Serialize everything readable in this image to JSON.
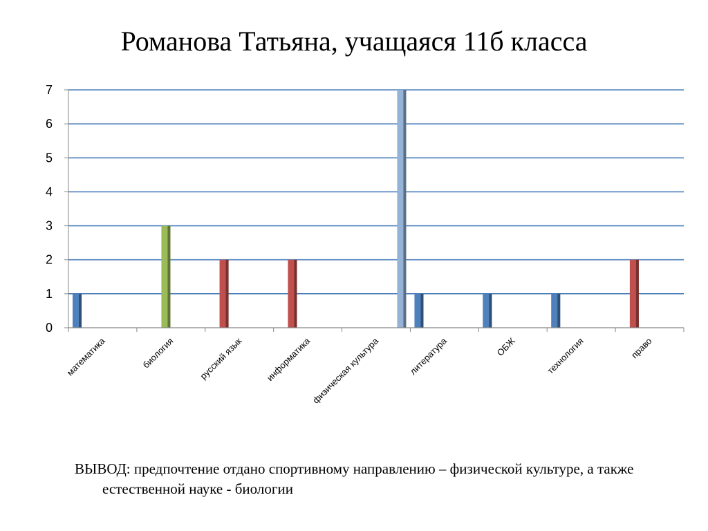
{
  "slide": {
    "title": "Романова Татьяна, учащаяся 11б класса",
    "conclusion": "ВЫВОД: предпочтение отдано спортивному направлению – физической культуре, а также естественной науке - биологии"
  },
  "chart_data": {
    "type": "bar",
    "title": "",
    "xlabel": "",
    "ylabel": "",
    "ylim": [
      0,
      7
    ],
    "yticks": [
      0,
      1,
      2,
      3,
      4,
      5,
      6,
      7
    ],
    "grid": true,
    "legend": "none",
    "categories": [
      "математика",
      "биология",
      "русский язык",
      "информатика",
      "физическая культура",
      "литература",
      "ОБЖ",
      "технология",
      "право"
    ],
    "series": [
      {
        "color": "#4F81BD",
        "values": [
          1,
          null,
          null,
          null,
          null,
          1,
          1,
          1,
          null
        ]
      },
      {
        "color": "#C0504D",
        "values": [
          null,
          null,
          2,
          2,
          null,
          null,
          null,
          null,
          2
        ]
      },
      {
        "color": "#9BBB59",
        "values": [
          null,
          3,
          null,
          null,
          null,
          null,
          null,
          null,
          null
        ]
      },
      {
        "color": "#8064A2",
        "values": [
          null,
          null,
          null,
          null,
          null,
          null,
          null,
          null,
          null
        ]
      },
      {
        "color": "#4BACC6",
        "values": [
          null,
          null,
          null,
          null,
          null,
          null,
          null,
          null,
          null
        ]
      },
      {
        "color": "#95B3D7",
        "values": [
          null,
          null,
          null,
          null,
          7,
          null,
          null,
          null,
          null
        ]
      }
    ]
  }
}
